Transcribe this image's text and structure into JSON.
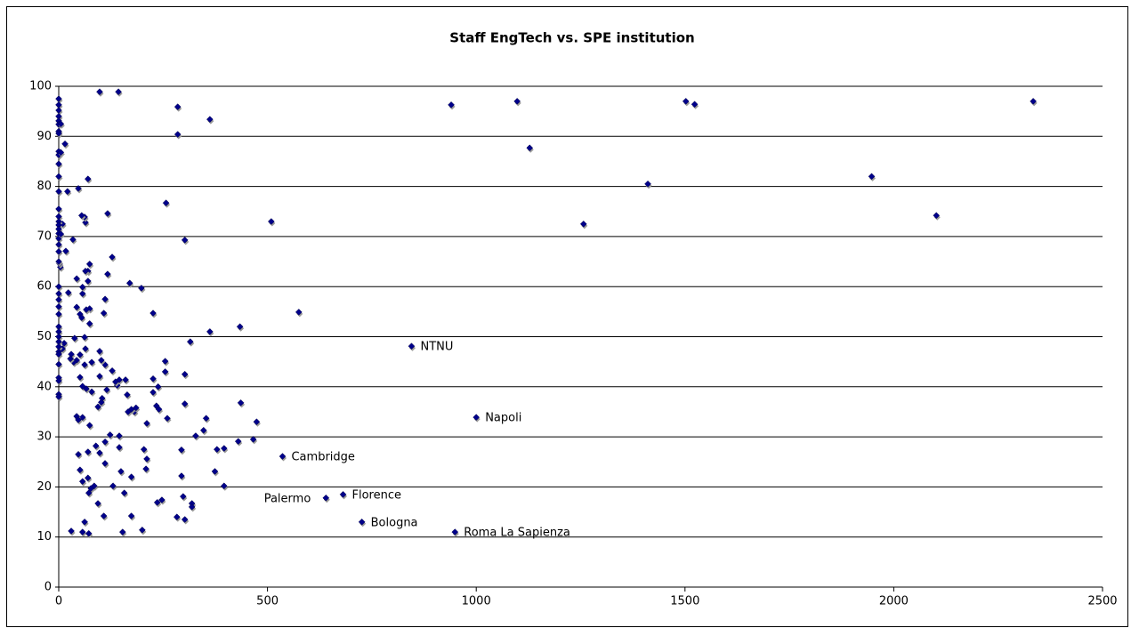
{
  "chart_data": {
    "type": "scatter",
    "title": "Staff EngTech vs. SPE institution",
    "xlim": [
      0,
      2500
    ],
    "xticks": [
      0,
      500,
      1000,
      1500,
      2000,
      2500
    ],
    "ylim": [
      0,
      100
    ],
    "yticks": [
      0,
      10,
      20,
      30,
      40,
      50,
      60,
      70,
      80,
      90,
      100
    ],
    "grid": true,
    "color": "#00008b",
    "x": [
      940,
      1098,
      1128,
      1257,
      1411,
      1502,
      1523,
      1947,
      2102,
      2334,
      509,
      575,
      434,
      436,
      474,
      466,
      430,
      681,
      536,
      1000,
      726,
      949,
      640,
      845,
      285,
      285,
      362,
      257,
      302,
      315,
      362,
      226,
      198,
      170,
      353,
      347,
      328,
      374,
      379,
      396,
      396,
      319,
      319,
      302,
      302,
      294,
      294,
      298,
      302,
      283,
      255,
      255,
      260,
      238,
      234,
      226,
      226,
      240,
      247,
      236,
      211,
      211,
      209,
      204,
      200,
      181,
      185,
      174,
      166,
      174,
      174,
      164,
      160,
      157,
      153,
      145,
      140,
      145,
      145,
      149,
      136,
      128,
      130,
      123,
      115,
      111,
      104,
      117,
      111,
      108,
      98,
      143,
      128,
      117,
      102,
      98,
      98,
      102,
      111,
      111,
      108,
      94,
      98,
      94,
      85,
      89,
      74,
      74,
      74,
      79,
      79,
      74,
      77,
      70,
      70,
      66,
      64,
      64,
      62,
      62,
      64,
      62,
      55,
      51,
      55,
      57,
      57,
      57,
      57,
      57,
      62,
      57,
      70,
      70,
      72,
      72,
      66,
      51,
      51,
      47,
      70,
      43,
      43,
      43,
      43,
      47,
      47,
      51,
      38,
      36,
      30,
      34,
      30,
      28,
      23,
      21,
      17,
      15,
      13,
      9,
      9,
      4,
      2,
      0,
      0,
      0,
      0,
      0,
      0,
      0,
      0,
      0,
      0,
      0,
      0,
      0,
      0,
      0,
      0,
      0,
      0,
      0,
      0,
      0,
      0,
      0,
      0,
      0,
      0,
      0,
      0,
      0,
      0,
      0,
      0,
      0,
      0,
      0,
      0,
      0,
      0,
      0,
      0,
      5,
      5,
      5
    ],
    "values": [
      96.3,
      97,
      87.7,
      72.5,
      80.5,
      97,
      96.4,
      82,
      74.2,
      97,
      73,
      54.9,
      52,
      36.8,
      33,
      29.5,
      29.1,
      18.5,
      26.1,
      33.9,
      13,
      11,
      17.8,
      48.1,
      95.9,
      90.4,
      93.4,
      76.7,
      69.3,
      49,
      51,
      54.7,
      59.7,
      60.7,
      33.7,
      31.3,
      30.2,
      23.1,
      27.5,
      27.7,
      20.2,
      16.7,
      16,
      42.5,
      36.6,
      27.4,
      22.2,
      18.1,
      13.5,
      14,
      45.1,
      43,
      33.7,
      40,
      36.2,
      41.6,
      38.9,
      35.5,
      17.4,
      16.9,
      32.7,
      25.6,
      23.6,
      27.5,
      11.4,
      35,
      35.8,
      35.5,
      35,
      22,
      14.2,
      38.4,
      41.4,
      18.8,
      11,
      41.4,
      40.3,
      30.2,
      27.9,
      23.1,
      41,
      43.2,
      20.2,
      30.4,
      39.4,
      44.4,
      37.7,
      74.6,
      57.5,
      54.7,
      98.9,
      98.9,
      65.9,
      62.5,
      45.3,
      47.1,
      42.1,
      36.9,
      29,
      24.7,
      14.2,
      36,
      26.8,
      16.7,
      20.2,
      28.2,
      52.6,
      55.6,
      64.5,
      44.9,
      39,
      32.3,
      19.7,
      61.1,
      63.1,
      55.4,
      63.1,
      47.6,
      44.4,
      49.9,
      72.8,
      73.9,
      74.2,
      54.5,
      53.8,
      58.6,
      59.9,
      40.1,
      33.9,
      11,
      13,
      21.1,
      21.8,
      27,
      10.7,
      18.8,
      39.6,
      41.9,
      46.4,
      79.6,
      81.5,
      61.6,
      55.9,
      45.3,
      34.1,
      33.4,
      26.5,
      23.4,
      49.7,
      44.9,
      46.5,
      69.4,
      11.2,
      45.6,
      58.8,
      79,
      67.1,
      88.5,
      48.7,
      47.6,
      72.5,
      63.9,
      64.6,
      97.5,
      96.3,
      95.2,
      94,
      93.1,
      92.4,
      91,
      90.6,
      87,
      86.3,
      84.5,
      82,
      79,
      75.5,
      74,
      73,
      72.3,
      71.5,
      70.6,
      69.6,
      68.4,
      67,
      65,
      60,
      58.6,
      57.4,
      56,
      54.5,
      52,
      51,
      50,
      49,
      48,
      47,
      46.5,
      44.5,
      41.8,
      41.2,
      38.5,
      38,
      92.5,
      86.8,
      70.5
    ],
    "annotations": [
      {
        "text": "NTNU",
        "x": 845,
        "y": 48.1,
        "side": "right"
      },
      {
        "text": "Napoli",
        "x": 1000,
        "y": 33.9,
        "side": "right"
      },
      {
        "text": "Cambridge",
        "x": 536,
        "y": 26.1,
        "side": "right"
      },
      {
        "text": "Florence",
        "x": 681,
        "y": 18.5,
        "side": "right"
      },
      {
        "text": "Palermo",
        "x": 640,
        "y": 17.8,
        "side": "left"
      },
      {
        "text": "Bologna",
        "x": 726,
        "y": 13,
        "side": "right"
      },
      {
        "text": "Roma La Sapienza",
        "x": 949,
        "y": 11,
        "side": "right"
      }
    ]
  }
}
